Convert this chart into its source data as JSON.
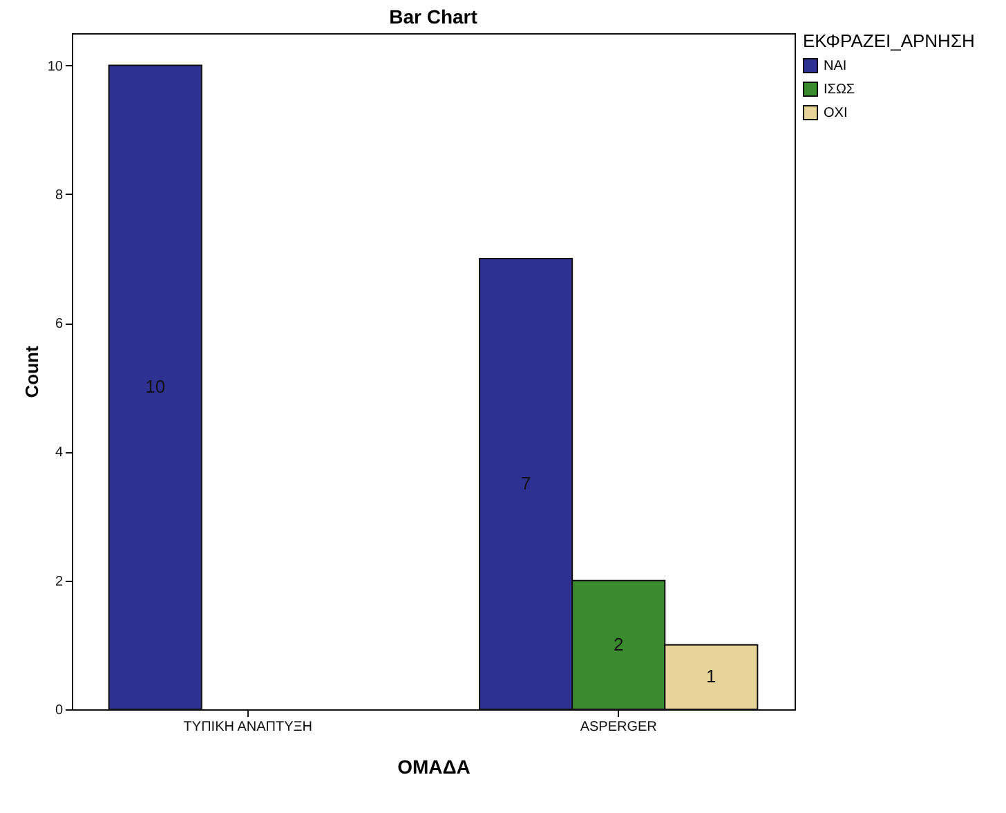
{
  "chart_data": {
    "type": "bar",
    "title": "Bar Chart",
    "xlabel": "ΟΜΑΔΑ",
    "ylabel": "Count",
    "legend_title": "ΕΚΦΡΑΖΕΙ_ΑΡΝΗΣΗ",
    "categories": [
      "ΤΥΠΙΚΗ ΑΝΑΠΤΥΞΗ",
      "ASPERGER"
    ],
    "series": [
      {
        "name": "ΝΑΙ",
        "color": "#2e3192",
        "values": [
          10,
          7
        ]
      },
      {
        "name": "ΙΣΩΣ",
        "color": "#3b8a2f",
        "values": [
          null,
          2
        ]
      },
      {
        "name": "ΟΧΙ",
        "color": "#e6d49a",
        "values": [
          null,
          1
        ]
      }
    ],
    "ylim": [
      0,
      10.5
    ],
    "yticks": [
      0,
      2,
      4,
      6,
      8,
      10
    ],
    "data_labels": true,
    "legend": "top right"
  }
}
